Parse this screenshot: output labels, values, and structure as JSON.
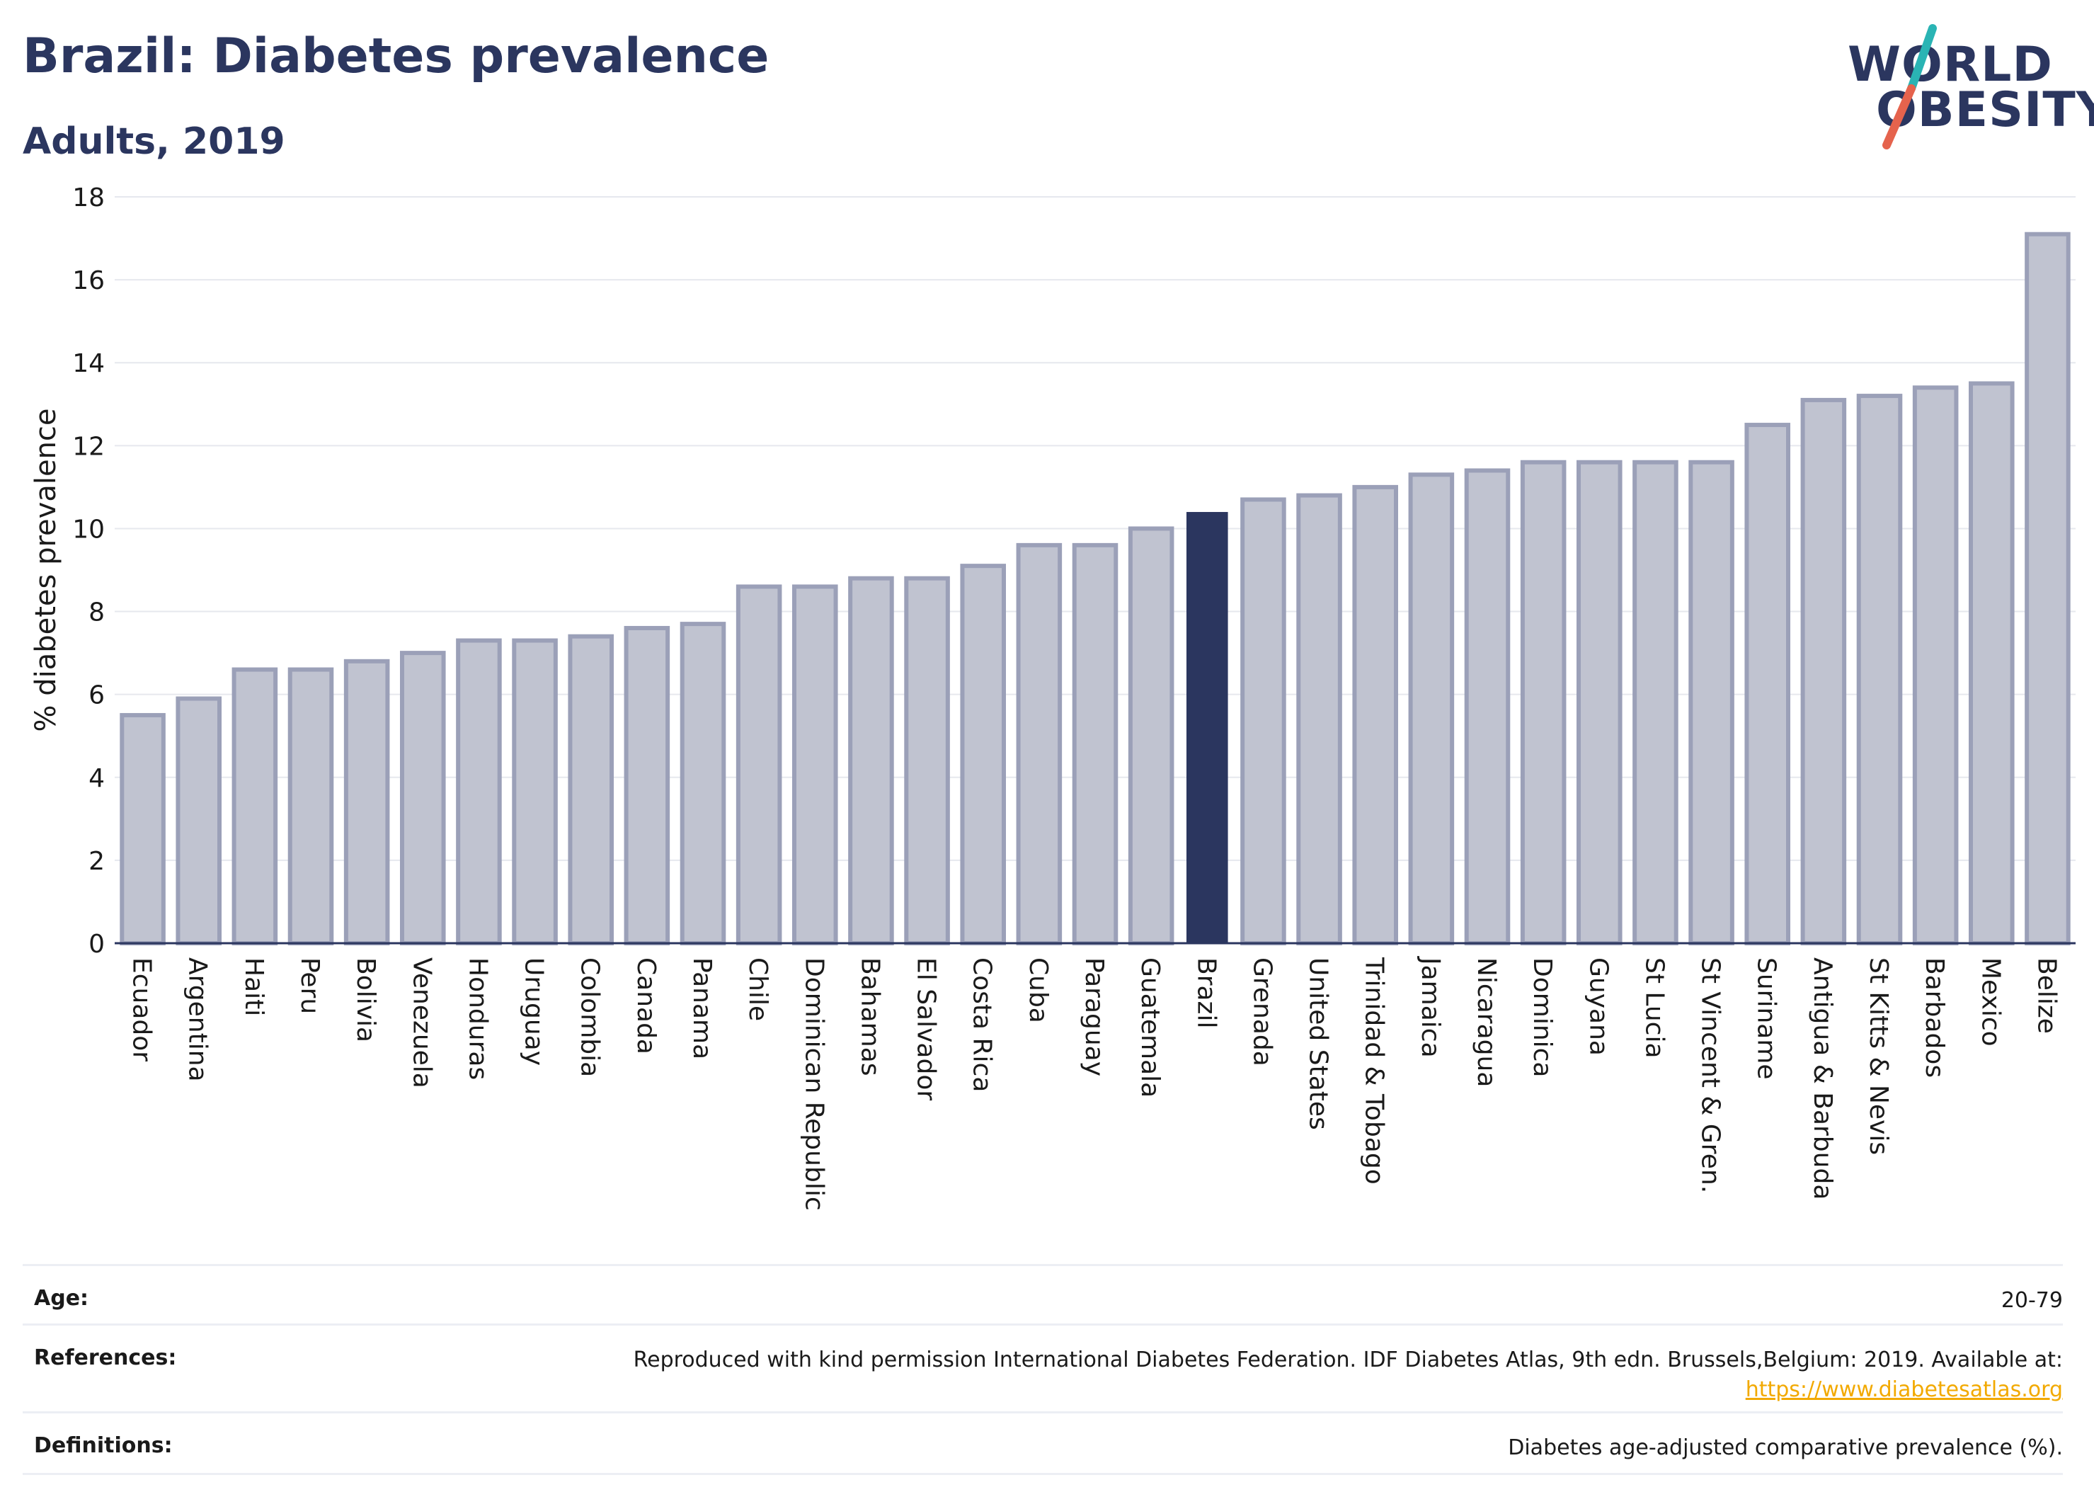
{
  "header": {
    "title": "Brazil: Diabetes prevalence",
    "subtitle": "Adults, 2019"
  },
  "logo": {
    "line1": "WORLD",
    "line2": "OBESITY",
    "text_color": "#2b365f",
    "slash_color_top": "#2ab4b4",
    "slash_color_bottom": "#e5634d"
  },
  "chart_data": {
    "type": "bar",
    "ylabel": "% diabetes prevalence",
    "xlabel": "",
    "ylim": [
      0,
      18
    ],
    "yticks": [
      0,
      2,
      4,
      6,
      8,
      10,
      12,
      14,
      16,
      18
    ],
    "grid": true,
    "highlight": "Brazil",
    "colors": {
      "bar": "#c0c3d0",
      "bar_edge": "#9ba0b8",
      "highlight": "#2b365f",
      "grid": "#e6e8ee",
      "axis": "#2b365f"
    },
    "categories": [
      "Ecuador",
      "Argentina",
      "Haiti",
      "Peru",
      "Bolivia",
      "Venezuela",
      "Honduras",
      "Uruguay",
      "Colombia",
      "Canada",
      "Panama",
      "Chile",
      "Dominican Republic",
      "Bahamas",
      "El Salvador",
      "Costa Rica",
      "Cuba",
      "Paraguay",
      "Guatemala",
      "Brazil",
      "Grenada",
      "United States",
      "Trinidad & Tobago",
      "Jamaica",
      "Nicaragua",
      "Dominica",
      "Guyana",
      "St Lucia",
      "St Vincent & Gren.",
      "Suriname",
      "Antigua & Barbuda",
      "St Kitts & Nevis",
      "Barbados",
      "Mexico",
      "Belize"
    ],
    "values": [
      5.5,
      5.9,
      6.6,
      6.6,
      6.8,
      7.0,
      7.3,
      7.3,
      7.4,
      7.6,
      7.7,
      8.6,
      8.6,
      8.8,
      8.8,
      9.1,
      9.6,
      9.6,
      10.0,
      10.4,
      10.7,
      10.8,
      11.0,
      11.3,
      11.4,
      11.6,
      11.6,
      11.6,
      11.6,
      12.5,
      13.1,
      13.2,
      13.4,
      13.5,
      17.1
    ]
  },
  "footer": {
    "age_label": "Age:",
    "age_value": "20-79",
    "references_label": "References:",
    "references_text": "Reproduced with kind permission International Diabetes Federation. IDF Diabetes Atlas, 9th edn. Brussels,Belgium: 2019. Available at:",
    "references_link": "https://www.diabetesatlas.org",
    "definitions_label": "Definitions:",
    "definitions_text": "Diabetes age-adjusted comparative prevalence (%)."
  }
}
